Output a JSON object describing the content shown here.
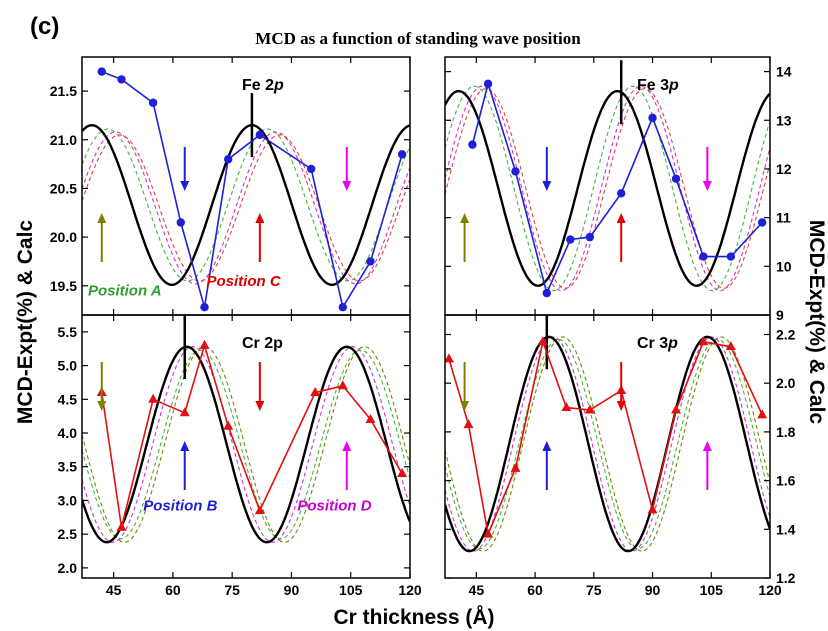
{
  "figure": {
    "panel_tag": "(c)",
    "title": "MCD as a function of standing wave position",
    "xlabel": "Cr thickness (Å)",
    "ylabel_left": "MCD-Expt(%) & Calc",
    "ylabel_right": "MCD-Expt(%) & Calc"
  },
  "chart_data": [
    {
      "type": "line",
      "label": [
        "Fe 2",
        "p"
      ],
      "xlim": [
        37,
        120
      ],
      "ylim": [
        19.2,
        21.85
      ],
      "xticks": [
        45,
        60,
        75,
        90,
        105,
        120
      ],
      "yticks": [
        19.5,
        20.0,
        20.5,
        21.0,
        21.5
      ],
      "ytick_labels": [
        "19.5",
        "20.0",
        "20.5",
        "21.0",
        "21.5"
      ],
      "ytick_side": "left",
      "expt": {
        "color": "#1f1fd6",
        "marker": "circle",
        "x": [
          42,
          47,
          55,
          62,
          68,
          74,
          82,
          95,
          103,
          110,
          118
        ],
        "y": [
          21.7,
          21.62,
          21.38,
          20.15,
          19.28,
          20.8,
          21.05,
          20.7,
          19.28,
          19.75,
          20.85
        ]
      },
      "calc": {
        "mid": 20.33,
        "amp": 0.82,
        "period": 40.5,
        "peak": 80
      },
      "phase_curves": [
        {
          "color": "#3cb83c",
          "mid": 20.33,
          "amp": 0.78,
          "peak": 84
        },
        {
          "color": "#cc33cc",
          "mid": 20.3,
          "amp": 0.78,
          "peak": 86
        },
        {
          "color": "#e04040",
          "mid": 20.3,
          "amp": 0.75,
          "peak": 87
        }
      ],
      "marker_line_x": 80,
      "arrows": [
        {
          "x": 42,
          "dir": "up",
          "color": "#808000"
        },
        {
          "x": 63,
          "dir": "down",
          "color": "#1f1fd6"
        },
        {
          "x": 82,
          "dir": "up",
          "color": "#e00000"
        },
        {
          "x": 104,
          "dir": "down",
          "color": "#ee00ee"
        }
      ],
      "positions": [
        {
          "text": "Position A",
          "color": "#2e9e2e",
          "x": 38,
          "y": 19.4
        },
        {
          "text": "Position C",
          "color": "#e00000",
          "x": 68,
          "y": 19.5
        }
      ]
    },
    {
      "type": "line",
      "label": [
        "Fe 3",
        "p"
      ],
      "xlim": [
        37,
        120
      ],
      "ylim": [
        9,
        14.3
      ],
      "xticks": [
        45,
        60,
        75,
        90,
        105,
        120
      ],
      "yticks": [
        9,
        10,
        11,
        12,
        13,
        14
      ],
      "ytick_labels": [
        "9",
        "10",
        "11",
        "12",
        "13",
        "14"
      ],
      "ytick_side": "right",
      "expt": {
        "color": "#1f1fd6",
        "marker": "circle",
        "x": [
          44,
          48,
          55,
          63,
          69,
          74,
          82,
          90,
          96,
          103,
          110,
          118
        ],
        "y": [
          12.5,
          13.75,
          11.95,
          9.45,
          10.55,
          10.6,
          11.5,
          13.05,
          11.8,
          10.2,
          10.2,
          10.9
        ],
        "skip_links": [
          [
            2,
            3
          ]
        ]
      },
      "calc": {
        "mid": 11.6,
        "amp": 2.0,
        "period": 40.5,
        "peak": 81
      },
      "phase_curves": [
        {
          "color": "#3cb83c",
          "mid": 11.6,
          "amp": 2.1,
          "peak": 85
        },
        {
          "color": "#cc33cc",
          "mid": 11.6,
          "amp": 2.1,
          "peak": 87
        },
        {
          "color": "#e04040",
          "mid": 11.6,
          "amp": 2.05,
          "peak": 88
        }
      ],
      "marker_line_x": 82,
      "arrows": [
        {
          "x": 42,
          "dir": "up",
          "color": "#808000"
        },
        {
          "x": 63,
          "dir": "down",
          "color": "#1f1fd6"
        },
        {
          "x": 82,
          "dir": "up",
          "color": "#e00000"
        },
        {
          "x": 104,
          "dir": "down",
          "color": "#ee00ee"
        }
      ],
      "positions": []
    },
    {
      "type": "line",
      "label": [
        "Cr 2p",
        ""
      ],
      "xlim": [
        37,
        120
      ],
      "ylim": [
        1.85,
        5.75
      ],
      "xticks": [
        45,
        60,
        75,
        90,
        105,
        120
      ],
      "yticks": [
        2.0,
        2.5,
        3.0,
        3.5,
        4.0,
        4.5,
        5.0,
        5.5
      ],
      "ytick_labels": [
        "2.0",
        "2.5",
        "3.0",
        "3.5",
        "4.0",
        "4.5",
        "5.0",
        "5.5"
      ],
      "ytick_side": "left",
      "expt": {
        "color": "#e01010",
        "marker": "triangle",
        "x": [
          42,
          47,
          55,
          63,
          68,
          74,
          82,
          96,
          103,
          110,
          118
        ],
        "y": [
          4.6,
          2.6,
          4.5,
          4.3,
          5.3,
          4.1,
          2.85,
          4.6,
          4.7,
          4.2,
          3.4
        ]
      },
      "calc": {
        "mid": 3.83,
        "amp": 1.45,
        "period": 40.5,
        "peak": 63.5
      },
      "phase_curves": [
        {
          "color": "#3cb83c",
          "mid": 3.83,
          "amp": 1.4,
          "peak": 67
        },
        {
          "color": "#cc33cc",
          "mid": 3.83,
          "amp": 1.45,
          "peak": 65
        },
        {
          "color": "#808000",
          "mid": 3.83,
          "amp": 1.45,
          "peak": 68
        }
      ],
      "marker_line_x": 63,
      "arrows": [
        {
          "x": 42,
          "dir": "down",
          "color": "#808000"
        },
        {
          "x": 63,
          "dir": "up",
          "color": "#1f1fd6"
        },
        {
          "x": 82,
          "dir": "down",
          "color": "#e00000"
        },
        {
          "x": 104,
          "dir": "up",
          "color": "#ee00ee"
        }
      ],
      "positions": [
        {
          "text": "Position B",
          "color": "#1f1fd6",
          "x": 52,
          "y": 2.85
        },
        {
          "text": "Position D",
          "color": "#cc00cc",
          "x": 91,
          "y": 2.85
        }
      ]
    },
    {
      "type": "line",
      "label": [
        "Cr 3",
        "p"
      ],
      "xlim": [
        37,
        120
      ],
      "ylim": [
        1.2,
        2.28
      ],
      "xticks": [
        45,
        60,
        75,
        90,
        105,
        120
      ],
      "yticks": [
        1.2,
        1.4,
        1.6,
        1.8,
        2.0,
        2.2
      ],
      "ytick_labels": [
        "1.2",
        "1.4",
        "1.6",
        "1.8",
        "2.0",
        "2.2"
      ],
      "ytick_side": "right",
      "expt": {
        "color": "#e01010",
        "marker": "triangle",
        "x": [
          38,
          43,
          48,
          55,
          62,
          68,
          74,
          82,
          90,
          96,
          103,
          110,
          118
        ],
        "y": [
          2.1,
          1.83,
          1.38,
          1.65,
          2.17,
          1.9,
          1.89,
          1.97,
          1.48,
          1.89,
          2.17,
          2.15,
          1.87
        ]
      },
      "calc": {
        "mid": 1.75,
        "amp": 0.44,
        "period": 40.5,
        "peak": 63.5
      },
      "phase_curves": [
        {
          "color": "#3cb83c",
          "mid": 1.75,
          "amp": 0.43,
          "peak": 66
        },
        {
          "color": "#cc33cc",
          "mid": 1.75,
          "amp": 0.44,
          "peak": 64.5
        },
        {
          "color": "#808000",
          "mid": 1.75,
          "amp": 0.44,
          "peak": 67
        }
      ],
      "marker_line_x": 63,
      "arrows": [
        {
          "x": 42,
          "dir": "down",
          "color": "#808000"
        },
        {
          "x": 63,
          "dir": "up",
          "color": "#1f1fd6"
        },
        {
          "x": 82,
          "dir": "down",
          "color": "#e00000"
        },
        {
          "x": 104,
          "dir": "up",
          "color": "#ee00ee"
        }
      ],
      "positions": []
    }
  ]
}
